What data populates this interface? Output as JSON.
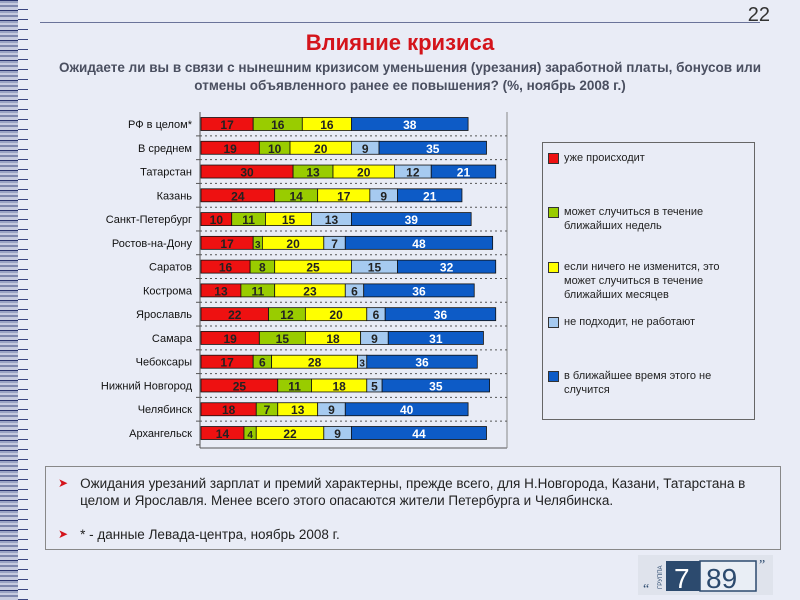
{
  "page_number": "22",
  "title": "Влияние кризиса",
  "subtitle": "Ожидаете ли вы в связи с нынешним кризисом уменьшения (урезания) заработной платы, бонусов или отмены объявленного ранее ее повышения? (%,  ноябрь  2008 г.)",
  "chart_data": {
    "type": "bar",
    "orientation": "horizontal",
    "stacked": true,
    "categories": [
      "РФ в целом*",
      "В среднем",
      "Татарстан",
      "Казань",
      "Санкт-Петербург",
      "Ростов-на-Дону",
      "Саратов",
      "Кострома",
      "Ярославль",
      "Самара",
      "Чебоксары",
      "Нижний Новгород",
      "Челябинск",
      "Архангельск"
    ],
    "series": [
      {
        "name": "уже происходит",
        "color": "#ee1111",
        "values": [
          17,
          19,
          30,
          24,
          10,
          17,
          16,
          13,
          22,
          19,
          17,
          25,
          18,
          14
        ]
      },
      {
        "name": "может случиться в течение ближайших недель",
        "color": "#99cc00",
        "values": [
          16,
          10,
          13,
          14,
          11,
          3,
          8,
          11,
          12,
          15,
          6,
          11,
          7,
          4
        ]
      },
      {
        "name": "если ничего не изменится, это может случиться в течение ближайших месяцев",
        "color": "#ffff00",
        "values": [
          16,
          20,
          20,
          17,
          15,
          20,
          25,
          23,
          20,
          18,
          28,
          18,
          13,
          22
        ]
      },
      {
        "name": "не подходит, не работают",
        "color": "#a6caf0",
        "values": [
          0,
          9,
          12,
          9,
          13,
          7,
          15,
          6,
          6,
          9,
          3,
          5,
          9,
          9
        ]
      },
      {
        "name": "в ближайшее время этого не случится",
        "color": "#0d5bc6",
        "values": [
          38,
          35,
          21,
          21,
          39,
          48,
          32,
          36,
          36,
          31,
          36,
          35,
          40,
          44
        ]
      }
    ],
    "grid": true,
    "legend_position": "right"
  },
  "notes": [
    "Ожидания урезаний зарплат и премий характерны, прежде всего, для Н.Новгорода, Казани, Татарстана в целом  и Ярославля. Менее всего этого опасаются жители Петербурга и Челябинска.",
    "* - данные Левада-центра, ноябрь 2008 г."
  ],
  "logo": {
    "small": "ГРУППА",
    "a": "7",
    "b": "89"
  }
}
